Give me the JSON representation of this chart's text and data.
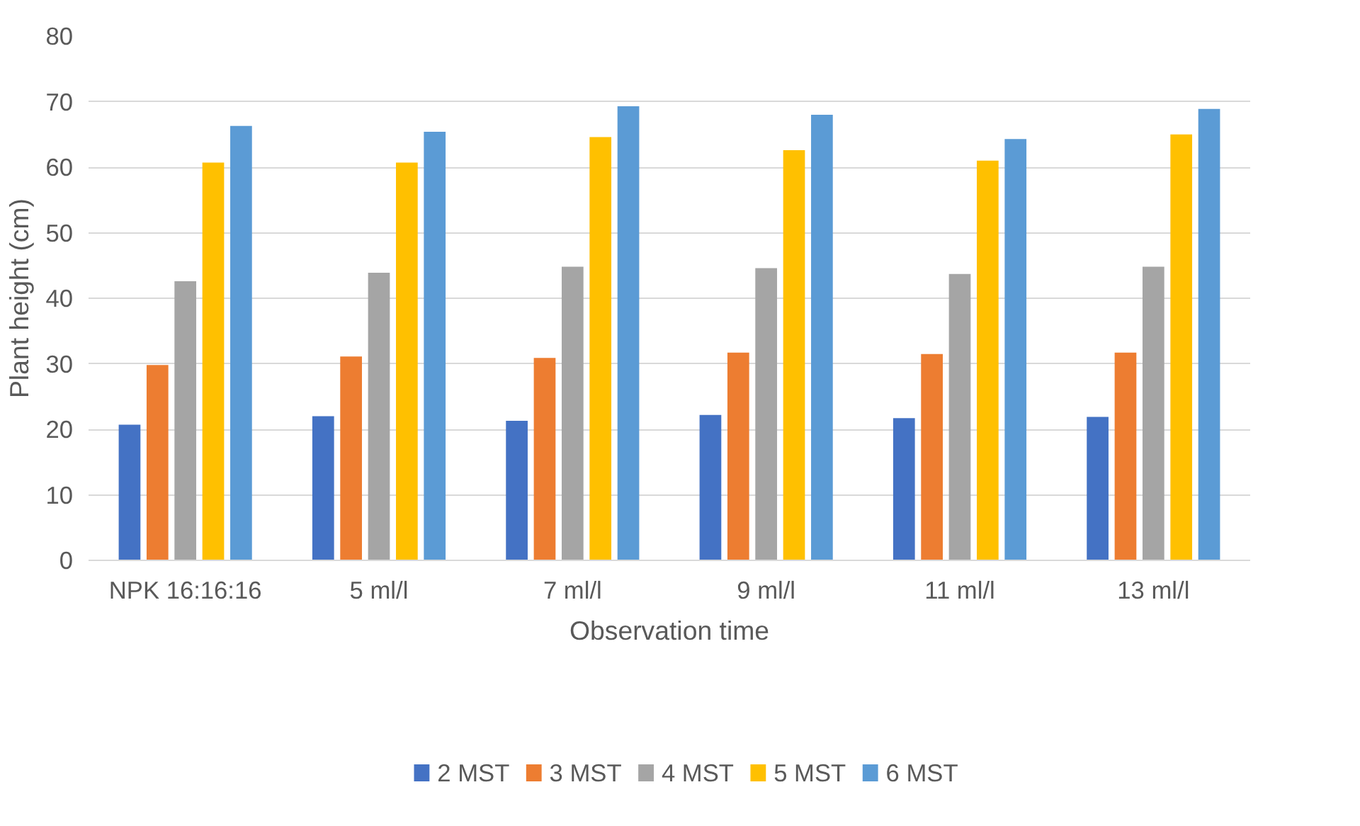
{
  "chart_data": {
    "type": "bar",
    "xlabel": "Observation time",
    "ylabel": "Plant height (cm)",
    "categories": [
      "NPK 16:16:16",
      "5 ml/l",
      "7 ml/l",
      "9 ml/l",
      "11 ml/l",
      "13 ml/l"
    ],
    "series": [
      {
        "name": "2 MST",
        "color": "#4472c4",
        "values": [
          20.7,
          22.0,
          21.3,
          22.2,
          21.7,
          21.9
        ]
      },
      {
        "name": "3 MST",
        "color": "#ed7d31",
        "values": [
          29.8,
          31.1,
          30.9,
          31.7,
          31.5,
          31.7
        ]
      },
      {
        "name": "4 MST",
        "color": "#a5a5a5",
        "values": [
          42.6,
          43.9,
          44.8,
          44.6,
          43.7,
          44.8
        ]
      },
      {
        "name": "5 MST",
        "color": "#ffc000",
        "values": [
          60.7,
          60.7,
          64.6,
          62.6,
          61.0,
          65.0
        ]
      },
      {
        "name": "6 MST",
        "color": "#5b9bd5",
        "values": [
          66.3,
          65.4,
          69.3,
          68.0,
          64.3,
          68.9
        ]
      }
    ],
    "ylim": [
      0,
      80
    ],
    "yticks": [
      0,
      10,
      20,
      30,
      40,
      50,
      60,
      70,
      80
    ],
    "grid": "y",
    "legend": "bottom"
  }
}
